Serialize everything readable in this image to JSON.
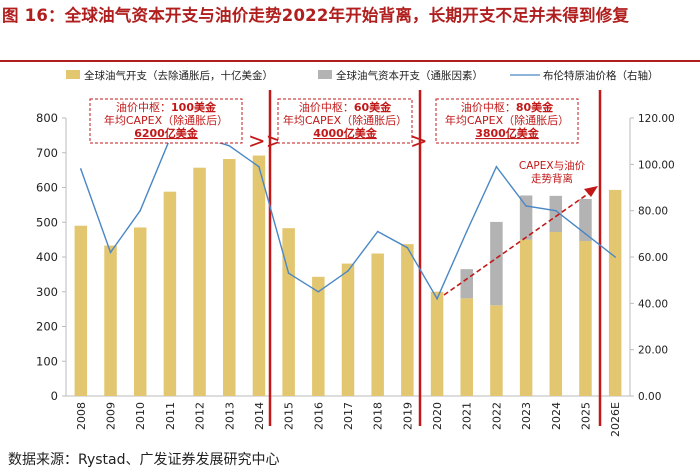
{
  "title": "图 16：全球油气资本开支与油价走势2022年开始背离，长期开支不足并未得到修复",
  "source": "数据来源：Rystad、广发证券发展研究中心",
  "colors": {
    "bar_real": "#e3c670",
    "bar_inflation": "#b3b3b3",
    "line_brent": "#4a87c5",
    "accent": "#c21818"
  },
  "chart_data": {
    "type": "bar",
    "categories": [
      "2008",
      "2009",
      "2010",
      "2011",
      "2012",
      "2013",
      "2014",
      "2015",
      "2016",
      "2017",
      "2018",
      "2019",
      "2020",
      "2021",
      "2022",
      "2023",
      "2024",
      "2025",
      "2026E"
    ],
    "series": [
      {
        "name": "全球油气开支（去除通胀后，十亿美金）",
        "type": "bar",
        "stack": "capex",
        "values": [
          490,
          433,
          485,
          588,
          657,
          682,
          692,
          483,
          343,
          381,
          410,
          437,
          300,
          281,
          261,
          450,
          472,
          446,
          593
        ]
      },
      {
        "name": "全球油气资本开支（通胀因素）",
        "type": "bar",
        "stack": "capex",
        "values": [
          0,
          0,
          0,
          0,
          0,
          0,
          0,
          0,
          0,
          0,
          0,
          0,
          0,
          84,
          240,
          127,
          104,
          121,
          0
        ]
      },
      {
        "name": "布伦特原油价格（右轴）",
        "type": "line",
        "axis": "right",
        "values": [
          98,
          62,
          80,
          111,
          112,
          108,
          99,
          53,
          45,
          54,
          71,
          64,
          42,
          71,
          99,
          82,
          80,
          70,
          60
        ]
      }
    ],
    "y_left": {
      "min": 0,
      "max": 800,
      "ticks": [
        "0",
        "100",
        "200",
        "300",
        "400",
        "500",
        "600",
        "700",
        "800"
      ]
    },
    "y_right": {
      "min": 0,
      "max": 120,
      "ticks": [
        "0.00",
        "20.00",
        "40.00",
        "60.00",
        "80.00",
        "100.00",
        "120.00"
      ]
    },
    "legend": [
      "全球油气开支（去除通胀后，十亿美金）",
      "全球油气资本开支（通胀因素）",
      "布伦特原油价格（右轴）"
    ],
    "legend_position": "top"
  },
  "annotations": {
    "a1": [
      "油价中枢：",
      "100美金",
      "年均CAPEX（除通胀后）",
      "6200亿美金"
    ],
    "a2": [
      "油价中枢：",
      "60美金",
      "年均CAPEX（除通胀后）",
      "4000亿美金"
    ],
    "a3": [
      "油价中枢：",
      "80美金",
      "年均CAPEX（除通胀后）",
      "3800亿美金"
    ],
    "divergence": [
      "CAPEX与油价",
      "走势背离"
    ],
    "arrows": [
      ">>",
      ">"
    ]
  }
}
